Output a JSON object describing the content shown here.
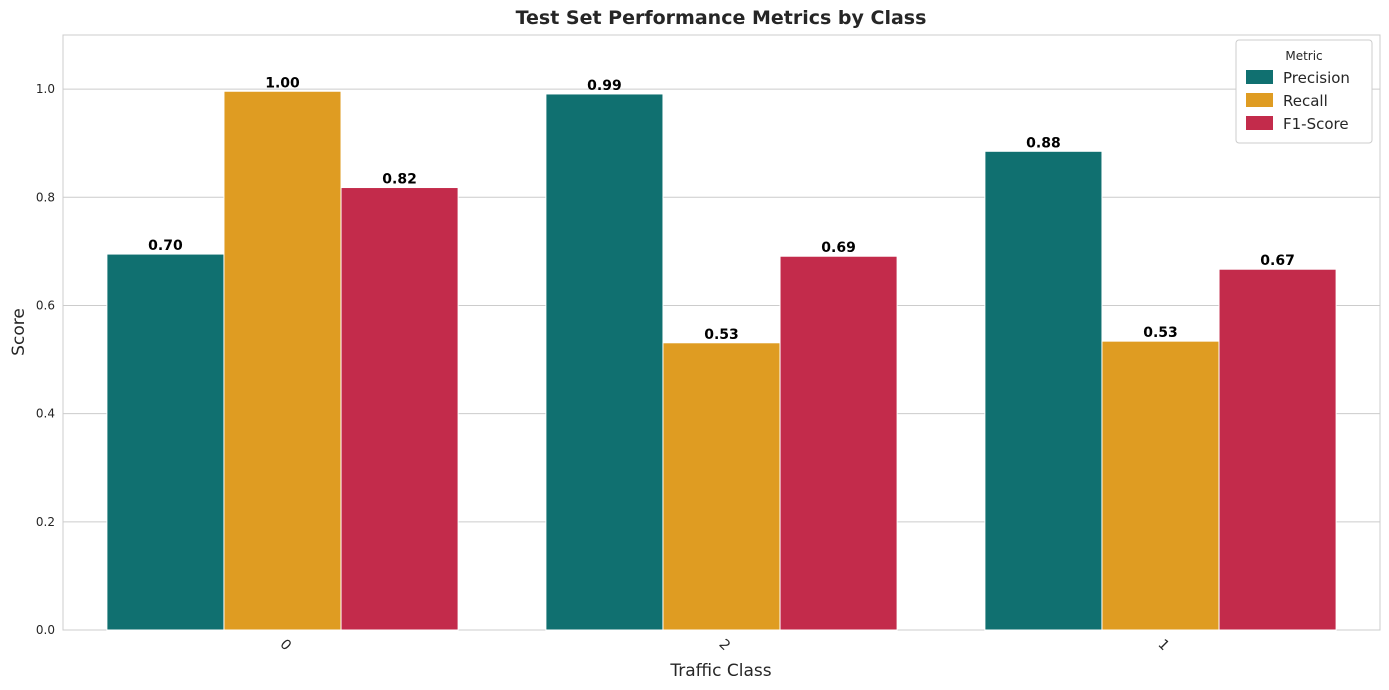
{
  "chart_data": {
    "type": "bar",
    "title": "Test Set Performance Metrics by Class",
    "xlabel": "Traffic Class",
    "ylabel": "Score",
    "categories": [
      "0",
      "2",
      "1"
    ],
    "ylim": [
      0,
      1.1
    ],
    "yticks": [
      "0.0",
      "0.2",
      "0.4",
      "0.6",
      "0.8",
      "1.0"
    ],
    "ytick_values": [
      0,
      0.2,
      0.4,
      0.6,
      0.8,
      1.0
    ],
    "grid": true,
    "legend": {
      "title": "Metric",
      "placement": "top-right"
    },
    "series": [
      {
        "name": "Precision",
        "color": "#107070",
        "values": [
          0.695,
          0.991,
          0.885
        ],
        "labels": [
          "0.70",
          "0.99",
          "0.88"
        ]
      },
      {
        "name": "Recall",
        "color": "#df9c22",
        "values": [
          0.996,
          0.531,
          0.534
        ],
        "labels": [
          "1.00",
          "0.53",
          "0.53"
        ]
      },
      {
        "name": "F1-Score",
        "color": "#c32b4b",
        "values": [
          0.818,
          0.691,
          0.667
        ],
        "labels": [
          "0.82",
          "0.69",
          "0.67"
        ]
      }
    ]
  }
}
